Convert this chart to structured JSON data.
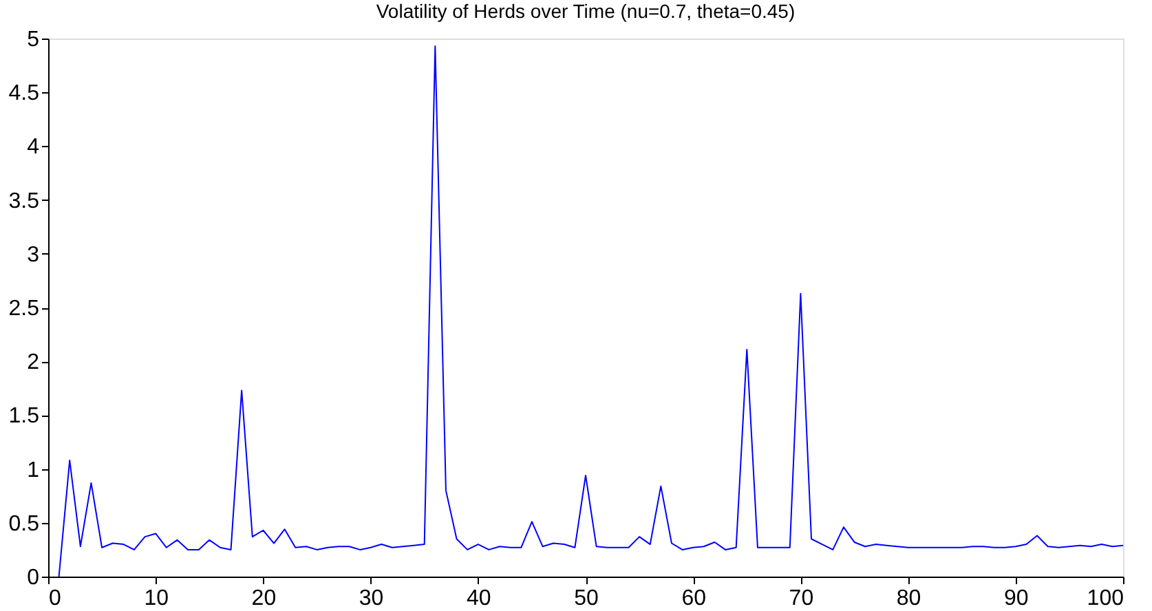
{
  "chart_data": {
    "type": "line",
    "title": "Volatility of Herds over Time (nu=0.7, theta=0.45)",
    "x": [
      1,
      2,
      3,
      4,
      5,
      6,
      7,
      8,
      9,
      10,
      11,
      12,
      13,
      14,
      15,
      16,
      17,
      18,
      19,
      20,
      21,
      22,
      23,
      24,
      25,
      26,
      27,
      28,
      29,
      30,
      31,
      32,
      33,
      34,
      35,
      36,
      37,
      38,
      39,
      40,
      41,
      42,
      43,
      44,
      45,
      46,
      47,
      48,
      49,
      50,
      51,
      52,
      53,
      54,
      55,
      56,
      57,
      58,
      59,
      60,
      61,
      62,
      63,
      64,
      65,
      66,
      67,
      68,
      69,
      70,
      71,
      72,
      73,
      74,
      75,
      76,
      77,
      78,
      79,
      80,
      81,
      82,
      83,
      84,
      85,
      86,
      87,
      88,
      89,
      90,
      91,
      92,
      93,
      94,
      95,
      96,
      97,
      98,
      99,
      100
    ],
    "series": [
      {
        "color": "#0000ff",
        "values": [
          0,
          1.08,
          0.28,
          0.87,
          0.27,
          0.31,
          0.3,
          0.25,
          0.37,
          0.4,
          0.27,
          0.34,
          0.25,
          0.25,
          0.34,
          0.27,
          0.25,
          1.73,
          0.37,
          0.43,
          0.31,
          0.44,
          0.27,
          0.28,
          0.25,
          0.27,
          0.28,
          0.28,
          0.25,
          0.27,
          0.3,
          0.27,
          0.28,
          0.29,
          0.3,
          4.93,
          0.8,
          0.35,
          0.25,
          0.3,
          0.25,
          0.28,
          0.27,
          0.27,
          0.51,
          0.28,
          0.31,
          0.3,
          0.27,
          0.94,
          0.28,
          0.27,
          0.27,
          0.27,
          0.37,
          0.3,
          0.84,
          0.31,
          0.25,
          0.27,
          0.28,
          0.32,
          0.25,
          0.27,
          2.11,
          0.27,
          0.27,
          0.27,
          0.27,
          2.63,
          0.35,
          0.3,
          0.25,
          0.46,
          0.32,
          0.28,
          0.3,
          0.29,
          0.28,
          0.27,
          0.27,
          0.27,
          0.27,
          0.27,
          0.27,
          0.28,
          0.28,
          0.27,
          0.27,
          0.28,
          0.3,
          0.38,
          0.28,
          0.27,
          0.28,
          0.29,
          0.28,
          0.3,
          0.28,
          0.29
        ]
      }
    ],
    "xlim": [
      0,
      100
    ],
    "xticks": [
      0,
      10,
      20,
      30,
      40,
      50,
      60,
      70,
      80,
      90,
      100
    ],
    "ylim": [
      0,
      5
    ],
    "yticks": [
      0,
      0.5,
      1,
      1.5,
      2,
      2.5,
      3,
      3.5,
      4,
      4.5,
      5
    ],
    "grid": false,
    "legend": false,
    "marker": "none",
    "line_style": "solid"
  }
}
